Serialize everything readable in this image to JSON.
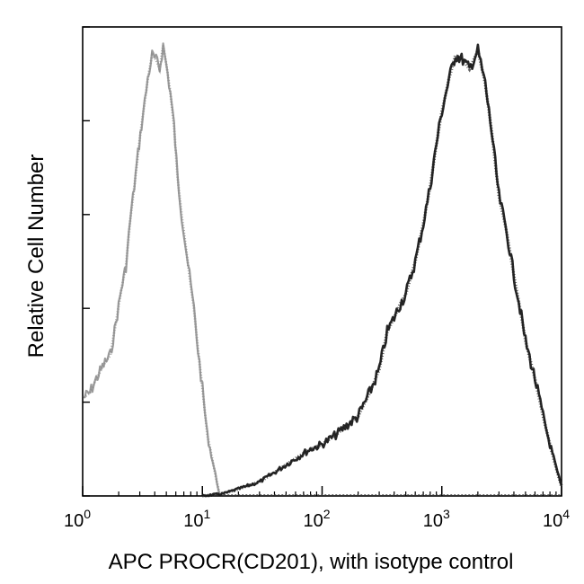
{
  "chart_data": {
    "type": "line",
    "title": "",
    "xlabel": "APC  PROCR(CD201), with isotype control",
    "ylabel": "Relative Cell Number",
    "x_scale": "log",
    "xlim": [
      1,
      10000
    ],
    "ylim": [
      0,
      100
    ],
    "x_ticks": [
      {
        "value": 1,
        "base": "10",
        "exp": "0"
      },
      {
        "value": 10,
        "base": "10",
        "exp": "1"
      },
      {
        "value": 100,
        "base": "10",
        "exp": "2"
      },
      {
        "value": 1000,
        "base": "10",
        "exp": "3"
      },
      {
        "value": 10000,
        "base": "10",
        "exp": "4"
      }
    ],
    "grid": false,
    "legend": "none",
    "colors": {
      "isotype": "#8a8a8a",
      "procr": "#1a1a1a",
      "frame": "#000000"
    },
    "series": [
      {
        "color": "#8a8a8a",
        "x": [
          1.02,
          1.15,
          1.3,
          1.5,
          1.7,
          1.9,
          2.1,
          2.3,
          2.5,
          2.7,
          2.9,
          3.1,
          3.3,
          3.5,
          3.8,
          4.1,
          4.4,
          4.7,
          5.0,
          5.4,
          5.8,
          6.2,
          6.7,
          7.2,
          7.8,
          8.5,
          9.2,
          10.0,
          11.0,
          12.5,
          14.0
        ],
        "y": [
          21,
          22,
          25,
          28,
          30,
          37,
          44,
          49,
          59,
          66,
          73,
          79,
          84,
          89,
          94,
          93,
          91,
          96,
          92,
          86,
          79,
          68,
          60,
          54,
          47,
          40,
          31,
          23,
          13,
          6,
          0
        ]
      },
      {
        "color": "#1a1a1a",
        "x": [
          10,
          15,
          20,
          30,
          40,
          60,
          80,
          100,
          130,
          160,
          200,
          250,
          300,
          350,
          400,
          450,
          500,
          600,
          700,
          800,
          900,
          1000,
          1150,
          1300,
          1500,
          1700,
          2000,
          2300,
          2600,
          3000,
          3500,
          4000,
          4500,
          5000,
          6000,
          7000,
          8000,
          9000,
          10000
        ],
        "y": [
          0,
          0.5,
          1.5,
          3,
          5,
          8,
          10,
          11,
          13,
          15,
          17,
          22,
          27,
          35,
          38,
          41,
          43,
          50,
          58,
          66,
          75,
          82,
          89,
          94,
          93,
          91,
          95,
          88,
          78,
          64,
          56,
          47,
          40,
          33,
          25,
          17,
          11,
          6,
          2
        ]
      }
    ]
  }
}
